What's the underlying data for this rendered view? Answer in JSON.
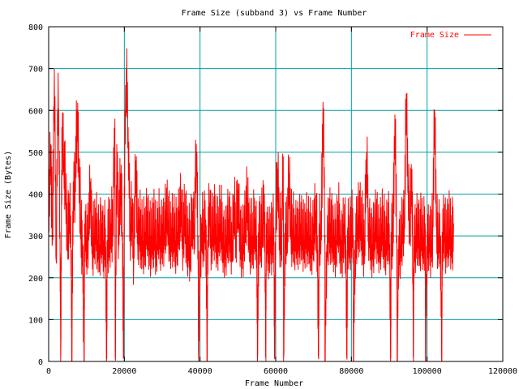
{
  "chart_data": {
    "type": "line",
    "title": "Frame Size (subband 3) vs Frame Number",
    "xlabel": "Frame Number",
    "ylabel": "Frame Size (Bytes)",
    "xlim": [
      0,
      120000
    ],
    "ylim": [
      0,
      800
    ],
    "x_ticks": [
      0,
      20000,
      40000,
      60000,
      80000,
      100000,
      120000
    ],
    "x_tick_labels": [
      "0",
      "20000",
      "40000",
      "60000",
      "80000",
      "100000",
      "120000"
    ],
    "y_ticks": [
      0,
      100,
      200,
      300,
      400,
      500,
      600,
      700,
      800
    ],
    "y_tick_labels": [
      "0",
      "100",
      "200",
      "300",
      "400",
      "500",
      "600",
      "700",
      "800"
    ],
    "grid": true,
    "legend_position": "top-right",
    "colors": {
      "series": "#ff0000",
      "grid": "#00a0a0",
      "axis": "#000000"
    },
    "series": [
      {
        "name": "Frame Size",
        "x_start": 0,
        "x_step": 500,
        "values": [
          330,
          520,
          290,
          700,
          240,
          690,
          310,
          560,
          480,
          410,
          300,
          380,
          250,
          430,
          420,
          600,
          460,
          320,
          280,
          330,
          300,
          310,
          430,
          270,
          300,
          340,
          290,
          280,
          330,
          290,
          320,
          290,
          300,
          330,
          340,
          580,
          520,
          300,
          450,
          310,
          420,
          700,
          560,
          330,
          370,
          260,
          480,
          300,
          340,
          300,
          290,
          310,
          360,
          300,
          300,
          300,
          320,
          280,
          330,
          300,
          330,
          310,
          360,
          340,
          300,
          320,
          320,
          290,
          310,
          360,
          380,
          300,
          350,
          290,
          300,
          280,
          360,
          330,
          520,
          300,
          250,
          330,
          310,
          340,
          290,
          380,
          300,
          320,
          330,
          300,
          330,
          330,
          310,
          280,
          300,
          340,
          300,
          290,
          380,
          300,
          410,
          330,
          280,
          300,
          330,
          390,
          310,
          300,
          300,
          340,
          300,
          330,
          290,
          330,
          400,
          330,
          290,
          300,
          300,
          320,
          360,
          460,
          310,
          300,
          490,
          330,
          290,
          450,
          330,
          320,
          300,
          330,
          300,
          330,
          300,
          290,
          330,
          310,
          300,
          290,
          330,
          360,
          300,
          330,
          310,
          620,
          300,
          280,
          330,
          330,
          300,
          300,
          290,
          350,
          300,
          290,
          330,
          300,
          320,
          300,
          330,
          300,
          290,
          330,
          350,
          330,
          300,
          290,
          500,
          330,
          320,
          280,
          310,
          330,
          300,
          300,
          330,
          310,
          290,
          330,
          330,
          310,
          300,
          590,
          300,
          300,
          280,
          330,
          320,
          640,
          420,
          330,
          460,
          300,
          300,
          330,
          280,
          320,
          300,
          330,
          310,
          300,
          290,
          330,
          600,
          330,
          300,
          300,
          310,
          330,
          300,
          300,
          320,
          300,
          330
        ],
        "dips": [
          {
            "x": 3200,
            "value": 10
          },
          {
            "x": 6100,
            "value": 10
          },
          {
            "x": 9400,
            "value": 10
          },
          {
            "x": 15300,
            "value": 10
          },
          {
            "x": 17600,
            "value": 10
          },
          {
            "x": 19800,
            "value": 10
          },
          {
            "x": 39600,
            "value": 10
          },
          {
            "x": 41900,
            "value": 10
          },
          {
            "x": 55200,
            "value": 10
          },
          {
            "x": 57400,
            "value": 10
          },
          {
            "x": 59700,
            "value": 10
          },
          {
            "x": 62100,
            "value": 10
          },
          {
            "x": 71300,
            "value": 10
          },
          {
            "x": 73000,
            "value": 10
          },
          {
            "x": 78800,
            "value": 10
          },
          {
            "x": 80500,
            "value": 10
          },
          {
            "x": 90400,
            "value": 10
          },
          {
            "x": 92100,
            "value": 10
          },
          {
            "x": 96400,
            "value": 10
          },
          {
            "x": 99600,
            "value": 10
          },
          {
            "x": 103900,
            "value": 10
          }
        ]
      }
    ]
  }
}
